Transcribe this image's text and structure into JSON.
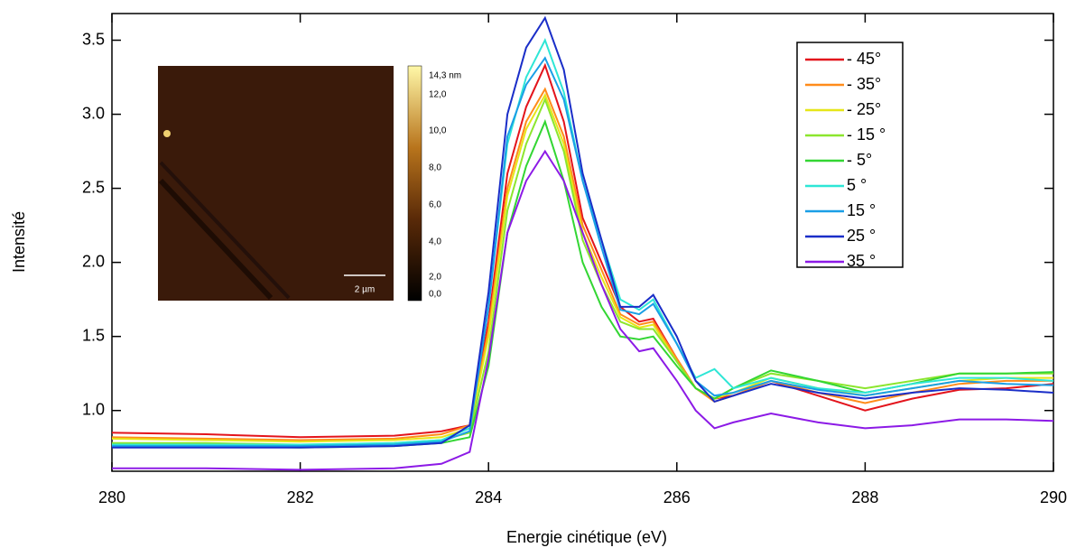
{
  "chart_data": {
    "type": "line",
    "xlabel": "Energie cinétique (eV)",
    "ylabel": "Intensité",
    "x": [
      280,
      281,
      282,
      283,
      283.5,
      283.8,
      284,
      284.2,
      284.4,
      284.6,
      284.8,
      285,
      285.2,
      285.4,
      285.6,
      285.75,
      286,
      286.2,
      286.4,
      286.6,
      287,
      287.5,
      288,
      288.5,
      289,
      289.5,
      290
    ],
    "series": [
      {
        "name": "- 45°",
        "color": "#e3141c",
        "values": [
          0.85,
          0.84,
          0.82,
          0.83,
          0.86,
          0.9,
          1.6,
          2.6,
          3.05,
          3.33,
          2.95,
          2.3,
          2.0,
          1.7,
          1.6,
          1.62,
          1.35,
          1.15,
          1.08,
          1.1,
          1.2,
          1.1,
          1.0,
          1.08,
          1.14,
          1.15,
          1.18
        ]
      },
      {
        "name": "- 35°",
        "color": "#ff8c1a",
        "values": [
          0.82,
          0.81,
          0.8,
          0.81,
          0.84,
          0.9,
          1.55,
          2.5,
          2.95,
          3.17,
          2.85,
          2.25,
          1.95,
          1.65,
          1.58,
          1.6,
          1.35,
          1.15,
          1.06,
          1.1,
          1.2,
          1.12,
          1.05,
          1.12,
          1.18,
          1.2,
          1.2
        ]
      },
      {
        "name": "- 25°",
        "color": "#e6e619",
        "values": [
          0.81,
          0.8,
          0.79,
          0.8,
          0.82,
          0.88,
          1.5,
          2.45,
          2.9,
          3.13,
          2.8,
          2.2,
          1.9,
          1.63,
          1.56,
          1.58,
          1.33,
          1.15,
          1.08,
          1.12,
          1.22,
          1.15,
          1.1,
          1.15,
          1.2,
          1.22,
          1.22
        ]
      },
      {
        "name": "- 15 °",
        "color": "#8ce62e",
        "values": [
          0.78,
          0.78,
          0.77,
          0.78,
          0.8,
          0.85,
          1.4,
          2.35,
          2.8,
          3.1,
          2.75,
          2.15,
          1.85,
          1.6,
          1.55,
          1.55,
          1.33,
          1.15,
          1.08,
          1.15,
          1.25,
          1.2,
          1.15,
          1.2,
          1.25,
          1.25,
          1.25
        ]
      },
      {
        "name": "- 5°",
        "color": "#33d633",
        "values": [
          0.76,
          0.76,
          0.75,
          0.76,
          0.78,
          0.82,
          1.3,
          2.2,
          2.65,
          2.95,
          2.55,
          2.0,
          1.7,
          1.5,
          1.48,
          1.5,
          1.3,
          1.15,
          1.08,
          1.15,
          1.27,
          1.2,
          1.12,
          1.18,
          1.25,
          1.25,
          1.26
        ]
      },
      {
        "name": "5 °",
        "color": "#2ee6d6",
        "values": [
          0.77,
          0.77,
          0.77,
          0.78,
          0.8,
          0.88,
          1.7,
          2.8,
          3.25,
          3.5,
          3.15,
          2.55,
          2.15,
          1.75,
          1.68,
          1.75,
          1.45,
          1.22,
          1.28,
          1.15,
          1.22,
          1.15,
          1.12,
          1.18,
          1.22,
          1.22,
          1.2
        ]
      },
      {
        "name": "15 °",
        "color": "#1a9fe6",
        "values": [
          0.76,
          0.76,
          0.76,
          0.77,
          0.79,
          0.86,
          1.7,
          2.85,
          3.2,
          3.38,
          3.1,
          2.55,
          2.1,
          1.68,
          1.65,
          1.72,
          1.45,
          1.2,
          1.1,
          1.12,
          1.2,
          1.14,
          1.1,
          1.15,
          1.2,
          1.18,
          1.17
        ]
      },
      {
        "name": "25 °",
        "color": "#1a2ec8",
        "values": [
          0.75,
          0.75,
          0.75,
          0.76,
          0.78,
          0.9,
          1.8,
          3.0,
          3.45,
          3.65,
          3.3,
          2.6,
          2.15,
          1.7,
          1.7,
          1.78,
          1.5,
          1.2,
          1.06,
          1.1,
          1.18,
          1.12,
          1.08,
          1.12,
          1.15,
          1.14,
          1.12
        ]
      },
      {
        "name": "35 °",
        "color": "#8c1ae6",
        "values": [
          0.61,
          0.61,
          0.6,
          0.61,
          0.64,
          0.72,
          1.35,
          2.2,
          2.55,
          2.75,
          2.55,
          2.2,
          1.85,
          1.55,
          1.4,
          1.42,
          1.2,
          1.0,
          0.88,
          0.92,
          0.98,
          0.92,
          0.88,
          0.9,
          0.94,
          0.94,
          0.93
        ]
      }
    ],
    "xlim": [
      280,
      290
    ],
    "xticks": [
      280,
      282,
      284,
      286,
      288,
      290
    ],
    "ylim": [
      0.59,
      3.68
    ],
    "yticks": [
      {
        "value": 1,
        "label": "1.0"
      },
      1.5,
      {
        "value": 2,
        "label": "2.0"
      },
      2.5,
      {
        "value": 3,
        "label": "3.0"
      },
      3.5
    ],
    "legend": "upper right",
    "inset": {
      "colorbar_labels": [
        "14,3 nm",
        "12,0",
        "10,0",
        "8,0",
        "6,0",
        "4,0",
        "2,0",
        "0,0"
      ],
      "scale_label": "2 µm"
    }
  }
}
